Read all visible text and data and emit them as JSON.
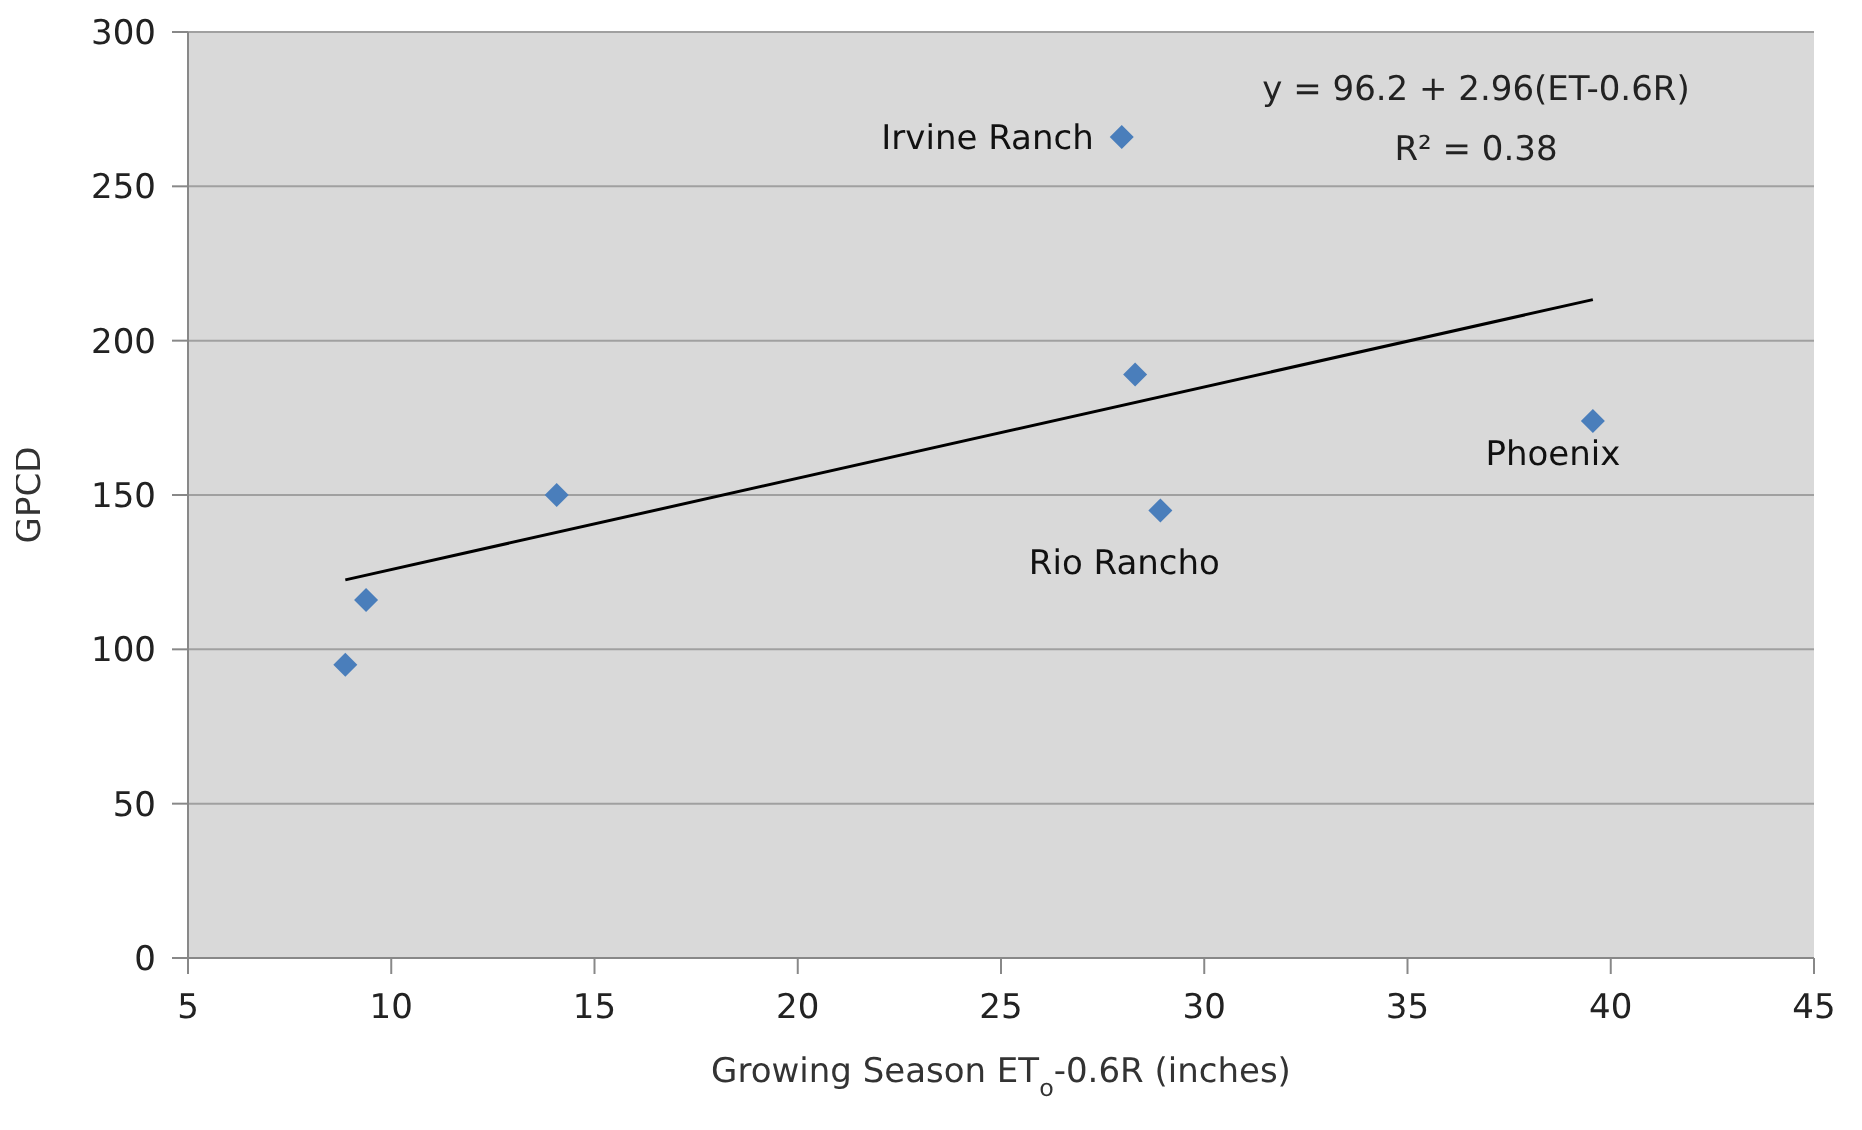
{
  "chart_data": {
    "type": "scatter",
    "xlabel": "Growing Season ET$_{o}$-0.6R (inches)",
    "ylabel": "GPCD",
    "x": [
      8.87,
      9.38,
      14.07,
      27.97,
      28.3,
      28.92,
      39.56
    ],
    "series": [
      {
        "color": "#4a7ebb",
        "marker": "diamond",
        "values": [
          95,
          116,
          150,
          266,
          189,
          145,
          174
        ]
      },
      {
        "type": "line",
        "color": "#000000",
        "marker": "none",
        "x": [
          8.87,
          39.56
        ],
        "values": [
          122.5,
          213.3
        ]
      }
    ],
    "xlim": [
      5,
      45
    ],
    "xticks": [
      5,
      10,
      15,
      20,
      25,
      30,
      35,
      40,
      45
    ],
    "ylim": [
      0,
      300
    ],
    "yticks": [
      0,
      50,
      100,
      150,
      200,
      250,
      300
    ],
    "grid": "y",
    "annotations": [
      {
        "text": "Irvine Ranch",
        "x": 27.97,
        "y": 266
      },
      {
        "text": "Rio Rancho",
        "x": 28.92,
        "y": 145
      },
      {
        "text": "Phoenix",
        "x": 39.56,
        "y": 174
      },
      "y = 96.2 + 2.96(ET-0.6R)",
      "R² = 0.38"
    ]
  }
}
